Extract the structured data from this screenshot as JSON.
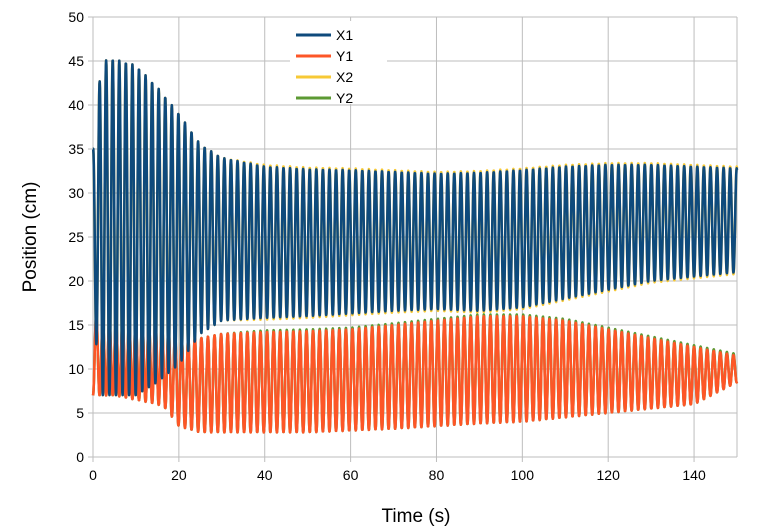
{
  "chart_data": {
    "type": "line",
    "title": "",
    "xlabel": "Time (s)",
    "ylabel": "Position (cm)",
    "xlim": [
      0,
      150
    ],
    "ylim": [
      0,
      50
    ],
    "xticks": [
      0,
      20,
      40,
      60,
      80,
      100,
      120,
      140
    ],
    "yticks": [
      0,
      5,
      10,
      15,
      20,
      25,
      30,
      35,
      40,
      45,
      50
    ],
    "grid": true,
    "legend_position": "top-center",
    "oscillation_period_s": 1.53,
    "series": [
      {
        "name": "X1",
        "color": "#0e4a7c",
        "envelope_time": [
          0,
          2,
          5,
          10,
          15,
          20,
          25,
          30,
          40,
          50,
          60,
          70,
          80,
          90,
          100,
          110,
          120,
          130,
          140,
          150
        ],
        "upper": [
          35,
          45,
          45.2,
          44.5,
          42,
          39,
          35.5,
          34,
          33,
          32.7,
          32.6,
          32.4,
          32.2,
          32.3,
          32.6,
          33,
          33.2,
          33.2,
          33,
          32.8
        ],
        "lower": [
          16.5,
          7,
          7,
          7,
          8.5,
          10.5,
          14,
          15.5,
          15.8,
          16,
          16.3,
          16.6,
          16.8,
          16.6,
          17,
          18,
          19,
          20,
          20.5,
          21
        ]
      },
      {
        "name": "Y1",
        "color": "#fd5627",
        "envelope_time": [
          0,
          2,
          5,
          10,
          15,
          17,
          20,
          25,
          30,
          40,
          50,
          60,
          70,
          80,
          90,
          100,
          110,
          120,
          130,
          140,
          150
        ],
        "upper": [
          16.5,
          15.5,
          15.5,
          15.5,
          15.5,
          15,
          13.5,
          13.5,
          14,
          14.2,
          14.3,
          14.5,
          15,
          15.5,
          16,
          16,
          15.5,
          14.5,
          13.5,
          12.5,
          11.5
        ],
        "lower": [
          7,
          7,
          7,
          6.5,
          6,
          5.5,
          3.5,
          2.8,
          2.8,
          2.8,
          2.8,
          3,
          3.2,
          3.5,
          3.8,
          4,
          4.5,
          5,
          5.5,
          6,
          8.5
        ]
      },
      {
        "name": "X2",
        "color": "#f7c935",
        "envelope_time": [
          0,
          2,
          5,
          10,
          15,
          20,
          25,
          30,
          40,
          50,
          60,
          70,
          80,
          90,
          100,
          110,
          120,
          130,
          140,
          150
        ],
        "upper": [
          35,
          45,
          45.2,
          44.5,
          42,
          39,
          35.5,
          34,
          33.2,
          32.9,
          32.8,
          32.6,
          32.4,
          32.5,
          32.8,
          33.2,
          33.4,
          33.4,
          33.2,
          33
        ],
        "lower": [
          16.5,
          7,
          7,
          7,
          8.5,
          10.5,
          14,
          15.5,
          15.6,
          15.8,
          16.1,
          16.4,
          16.6,
          16.4,
          16.8,
          17.8,
          18.8,
          19.8,
          20.3,
          20.8
        ]
      },
      {
        "name": "Y2",
        "color": "#5c9a33",
        "envelope_time": [
          0,
          2,
          5,
          10,
          15,
          17,
          20,
          25,
          30,
          40,
          50,
          60,
          70,
          80,
          90,
          100,
          110,
          120,
          130,
          140,
          150
        ],
        "upper": [
          16.5,
          15.5,
          15.5,
          15.5,
          15.5,
          15,
          13.5,
          13.5,
          14,
          14.4,
          14.5,
          14.7,
          15.2,
          15.7,
          16.2,
          16.2,
          15.7,
          14.7,
          13.7,
          12.7,
          11.7
        ],
        "lower": [
          7,
          7,
          7,
          6.5,
          6,
          5.5,
          3.5,
          2.8,
          2.8,
          2.8,
          2.8,
          3,
          3.2,
          3.5,
          3.8,
          4,
          4.5,
          5,
          5.5,
          6,
          8.5
        ]
      }
    ]
  }
}
